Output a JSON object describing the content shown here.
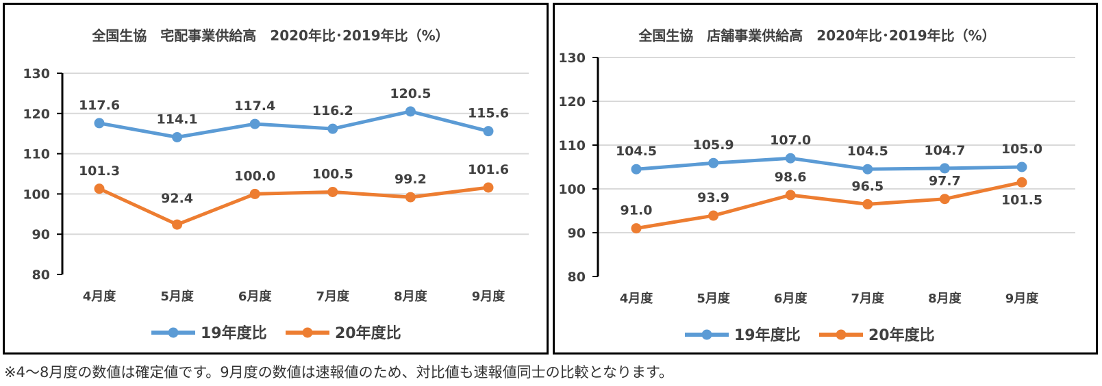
{
  "chart_data": [
    {
      "type": "line",
      "title": "全国生協　宅配事業供給高　2020年比･2019年比（%）",
      "xlabel": "",
      "ylabel": "",
      "categories": [
        "4月度",
        "5月度",
        "6月度",
        "7月度",
        "8月度",
        "9月度"
      ],
      "series": [
        {
          "name": "19年度比",
          "color": "#5B9BD5",
          "values": [
            117.6,
            114.1,
            117.4,
            116.2,
            120.5,
            115.6
          ]
        },
        {
          "name": "20年度比",
          "color": "#ED7D31",
          "values": [
            101.3,
            92.4,
            100.0,
            100.5,
            99.2,
            101.6
          ]
        }
      ],
      "ylim": [
        80,
        130
      ],
      "yticks": [
        80,
        90,
        100,
        110,
        120,
        130
      ],
      "grid": true,
      "legend": "bottom"
    },
    {
      "type": "line",
      "title": "全国生協　店舗事業供給高　2020年比･2019年比（%）",
      "xlabel": "",
      "ylabel": "",
      "categories": [
        "4月度",
        "5月度",
        "6月度",
        "7月度",
        "8月度",
        "9月度"
      ],
      "series": [
        {
          "name": "19年度比",
          "color": "#5B9BD5",
          "values": [
            104.5,
            105.9,
            107.0,
            104.5,
            104.7,
            105.0
          ]
        },
        {
          "name": "20年度比",
          "color": "#ED7D31",
          "values": [
            91.0,
            93.9,
            98.6,
            96.5,
            97.7,
            101.5
          ]
        }
      ],
      "ylim": [
        80,
        130
      ],
      "yticks": [
        80,
        90,
        100,
        110,
        120,
        130
      ],
      "grid": true,
      "legend": "bottom"
    }
  ],
  "footnote": "※4～8月度の数値は確定値です。9月度の数値は速報値のため、対比値も速報値同士の比較となります。"
}
